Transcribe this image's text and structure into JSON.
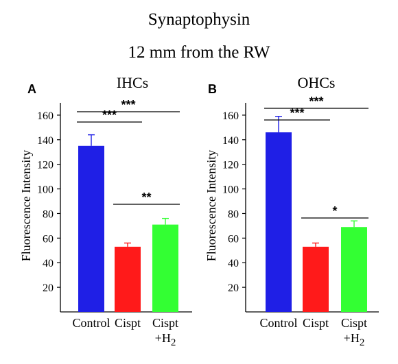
{
  "figure": {
    "title": "Synaptophysin",
    "subtitle": "12 mm from the RW"
  },
  "chart_data": [
    {
      "type": "bar",
      "panel_label": "A",
      "title": "IHCs",
      "xlabel": "",
      "ylabel": "Fluorescence Intensity",
      "categories": [
        "Control",
        "Cispt",
        "Cispt\n+H2"
      ],
      "values": [
        135,
        53,
        71
      ],
      "errors": [
        9,
        3,
        5
      ],
      "colors": [
        "#1f1fe6",
        "#ff1a1a",
        "#33ff33"
      ],
      "ylim": [
        0,
        170
      ],
      "yticks": [
        20,
        40,
        60,
        80,
        100,
        120,
        140,
        160
      ],
      "significance": [
        {
          "from": 0,
          "to": 1,
          "label": "***"
        },
        {
          "from": 0,
          "to": 2,
          "label": "***"
        },
        {
          "from": 1,
          "to": 2,
          "label": "**"
        }
      ]
    },
    {
      "type": "bar",
      "panel_label": "B",
      "title": "OHCs",
      "xlabel": "",
      "ylabel": "Fluorescence Intensity",
      "categories": [
        "Control",
        "Cispt",
        "Cispt\n+H2"
      ],
      "values": [
        146,
        53,
        69
      ],
      "errors": [
        13,
        3,
        5
      ],
      "colors": [
        "#1f1fe6",
        "#ff1a1a",
        "#33ff33"
      ],
      "ylim": [
        0,
        170
      ],
      "yticks": [
        20,
        40,
        60,
        80,
        100,
        120,
        140,
        160
      ],
      "significance": [
        {
          "from": 0,
          "to": 1,
          "label": "***"
        },
        {
          "from": 0,
          "to": 2,
          "label": "***"
        },
        {
          "from": 1,
          "to": 2,
          "label": "*"
        }
      ]
    }
  ]
}
